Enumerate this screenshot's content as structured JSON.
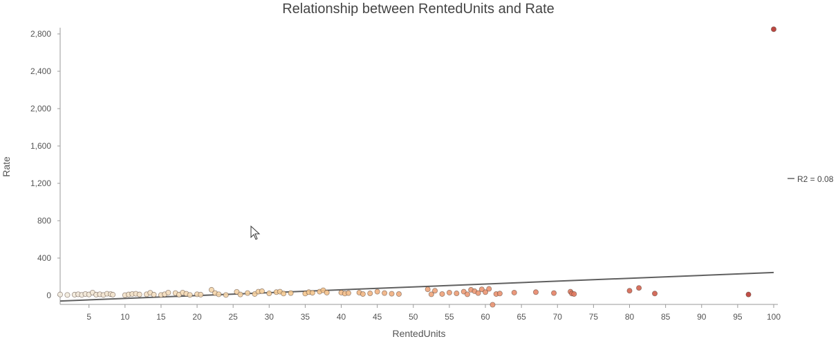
{
  "chart_data": {
    "type": "scatter",
    "title": "Relationship between RentedUnits and Rate",
    "xlabel": "RentedUnits",
    "ylabel": "Rate",
    "xlim": [
      1,
      100
    ],
    "ylim": [
      -100,
      2860
    ],
    "xticks": [
      5,
      10,
      15,
      20,
      25,
      30,
      35,
      40,
      45,
      50,
      55,
      60,
      65,
      70,
      75,
      80,
      85,
      90,
      95,
      100
    ],
    "xtick_labels": [
      "5",
      "10",
      "15",
      "20",
      "25",
      "30",
      "35",
      "40",
      "45",
      "50",
      "55",
      "60",
      "65",
      "70",
      "75",
      "80",
      "85",
      "90",
      "95",
      "100"
    ],
    "yticks": [
      0,
      400,
      800,
      1200,
      1600,
      2000,
      2400,
      2800
    ],
    "ytick_labels": [
      "0",
      "400",
      "800",
      "1,200",
      "1,600",
      "2,000",
      "2,400",
      "2,800"
    ],
    "grid": false,
    "legend": {
      "placement": "right",
      "entries": [
        "R2 = 0.08"
      ]
    },
    "color_scale": [
      "#f2ece0",
      "#f5c98f",
      "#e8876a",
      "#b5322c"
    ],
    "trendline": {
      "x": [
        1,
        100
      ],
      "y": [
        -60,
        245
      ],
      "r2_label": "R2 = 0.08"
    },
    "points": [
      {
        "x": 1,
        "y": 10
      },
      {
        "x": 2,
        "y": 5
      },
      {
        "x": 3,
        "y": 8
      },
      {
        "x": 3.5,
        "y": 12
      },
      {
        "x": 4,
        "y": 6
      },
      {
        "x": 4.5,
        "y": 15
      },
      {
        "x": 5,
        "y": 10
      },
      {
        "x": 5.5,
        "y": 30
      },
      {
        "x": 6,
        "y": 8
      },
      {
        "x": 6.5,
        "y": 12
      },
      {
        "x": 7,
        "y": 5
      },
      {
        "x": 7.5,
        "y": 18
      },
      {
        "x": 8,
        "y": 14
      },
      {
        "x": 8.3,
        "y": 8
      },
      {
        "x": 10,
        "y": 3
      },
      {
        "x": 10.5,
        "y": 10
      },
      {
        "x": 11,
        "y": 15
      },
      {
        "x": 11.5,
        "y": 18
      },
      {
        "x": 12,
        "y": 10
      },
      {
        "x": 13,
        "y": 12
      },
      {
        "x": 13.5,
        "y": 28
      },
      {
        "x": 14,
        "y": 8
      },
      {
        "x": 15,
        "y": 5
      },
      {
        "x": 15.5,
        "y": 12
      },
      {
        "x": 16,
        "y": 30
      },
      {
        "x": 17,
        "y": 25
      },
      {
        "x": 17.5,
        "y": 8
      },
      {
        "x": 18,
        "y": 30
      },
      {
        "x": 18.5,
        "y": 18
      },
      {
        "x": 19,
        "y": 5
      },
      {
        "x": 20,
        "y": 12
      },
      {
        "x": 20.5,
        "y": 8
      },
      {
        "x": 22,
        "y": 60
      },
      {
        "x": 22.5,
        "y": 25
      },
      {
        "x": 23,
        "y": 12
      },
      {
        "x": 24,
        "y": 5
      },
      {
        "x": 25.5,
        "y": 38
      },
      {
        "x": 26,
        "y": 10
      },
      {
        "x": 27,
        "y": 25
      },
      {
        "x": 28,
        "y": 15
      },
      {
        "x": 28.5,
        "y": 40
      },
      {
        "x": 29,
        "y": 45
      },
      {
        "x": 30,
        "y": 22
      },
      {
        "x": 31,
        "y": 35
      },
      {
        "x": 31.5,
        "y": 40
      },
      {
        "x": 32,
        "y": 20
      },
      {
        "x": 33,
        "y": 25
      },
      {
        "x": 35,
        "y": 20
      },
      {
        "x": 35.5,
        "y": 35
      },
      {
        "x": 36,
        "y": 28
      },
      {
        "x": 37,
        "y": 40
      },
      {
        "x": 37.5,
        "y": 55
      },
      {
        "x": 38,
        "y": 30
      },
      {
        "x": 40,
        "y": 30
      },
      {
        "x": 40.5,
        "y": 20
      },
      {
        "x": 41,
        "y": 25
      },
      {
        "x": 42.5,
        "y": 30
      },
      {
        "x": 43,
        "y": 15
      },
      {
        "x": 44,
        "y": 22
      },
      {
        "x": 45,
        "y": 40
      },
      {
        "x": 46,
        "y": 25
      },
      {
        "x": 47,
        "y": 18
      },
      {
        "x": 48,
        "y": 15
      },
      {
        "x": 52,
        "y": 65
      },
      {
        "x": 52.5,
        "y": 12
      },
      {
        "x": 53,
        "y": 50
      },
      {
        "x": 54,
        "y": 15
      },
      {
        "x": 55,
        "y": 30
      },
      {
        "x": 56,
        "y": 22
      },
      {
        "x": 57,
        "y": 40
      },
      {
        "x": 57.5,
        "y": 12
      },
      {
        "x": 58,
        "y": 60
      },
      {
        "x": 58.5,
        "y": 45
      },
      {
        "x": 59,
        "y": 25
      },
      {
        "x": 59.5,
        "y": 65
      },
      {
        "x": 60,
        "y": 35
      },
      {
        "x": 60.5,
        "y": 70
      },
      {
        "x": 61,
        "y": -100
      },
      {
        "x": 61.5,
        "y": 15
      },
      {
        "x": 62,
        "y": 20
      },
      {
        "x": 64,
        "y": 30
      },
      {
        "x": 67,
        "y": 35
      },
      {
        "x": 69.5,
        "y": 25
      },
      {
        "x": 71.8,
        "y": 40
      },
      {
        "x": 72,
        "y": 20
      },
      {
        "x": 72.3,
        "y": 15
      },
      {
        "x": 80,
        "y": 50
      },
      {
        "x": 81.3,
        "y": 80
      },
      {
        "x": 83.5,
        "y": 20
      },
      {
        "x": 96.5,
        "y": 10
      },
      {
        "x": 100,
        "y": 2850
      }
    ]
  }
}
